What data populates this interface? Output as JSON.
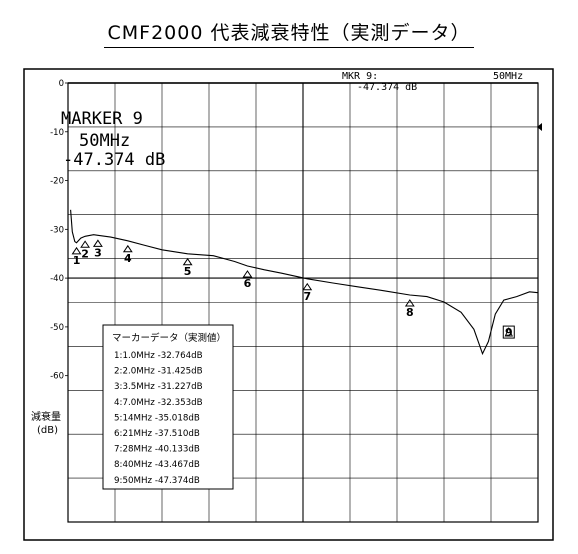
{
  "title": "CMF2000 代表減衰特性（実測データ）",
  "header": {
    "marker_label": "MKR 9:",
    "marker_value": "-47.374 dB",
    "span_label": "50MHz"
  },
  "readout": {
    "line1": "MARKER 9",
    "line2": "50MHz",
    "line3": "-47.374 dB"
  },
  "ylabel": {
    "line1": "減衰量",
    "line2": "(dB)"
  },
  "table": {
    "title": "マーカーデータ（実測値）",
    "rows": [
      "1:1.0MHz -32.764dB",
      "2:2.0MHz -31.425dB",
      "3:3.5MHz -31.227dB",
      "4:7.0MHz -32.353dB",
      "5:14MHz -35.018dB",
      "6:21MHz -37.510dB",
      "7:28MHz -40.133dB",
      "8:40MHz -43.467dB",
      "9:50MHz -47.374dB"
    ]
  },
  "chart_data": {
    "type": "line",
    "xlim": [
      0,
      55
    ],
    "ylim": [
      -90,
      0
    ],
    "yticks": [
      0,
      -10,
      -20,
      -30,
      -40,
      -50,
      -60
    ],
    "grid": true,
    "series": [
      {
        "x": [
          0.3,
          0.5,
          0.8,
          1.0,
          1.5,
          2.0,
          3.0,
          3.5,
          5.0,
          7.0,
          9.0,
          11.0,
          14.0,
          17.0,
          19.5,
          21.0,
          23.0,
          25.0,
          28.0,
          31.0,
          34.0,
          37.0,
          40.0,
          42.0,
          44.0,
          46.0,
          47.5,
          48.5,
          49.2,
          50.0,
          51.0,
          52.5,
          54.0,
          55.0
        ],
        "y": [
          -26,
          -30.5,
          -32.5,
          -32.764,
          -31.8,
          -31.425,
          -31.1,
          -31.227,
          -31.6,
          -32.353,
          -33.3,
          -34.2,
          -35.018,
          -35.4,
          -36.6,
          -37.51,
          -38.3,
          -39.0,
          -40.133,
          -41.0,
          -41.8,
          -42.6,
          -43.467,
          -43.8,
          -44.9,
          -47.0,
          -50.5,
          -55.5,
          -53.0,
          -47.374,
          -44.5,
          -43.8,
          -42.8,
          -43.0
        ]
      }
    ],
    "markers": [
      {
        "label": "1",
        "x": 1.0,
        "y": -32.764
      },
      {
        "label": "2",
        "x": 2.0,
        "y": -31.425
      },
      {
        "label": "3",
        "x": 3.5,
        "y": -31.227
      },
      {
        "label": "4",
        "x": 7.0,
        "y": -32.353
      },
      {
        "label": "5",
        "x": 14.0,
        "y": -35.018
      },
      {
        "label": "6",
        "x": 21.0,
        "y": -37.51
      },
      {
        "label": "7",
        "x": 28.0,
        "y": -40.133
      },
      {
        "label": "8",
        "x": 40.0,
        "y": -43.467
      },
      {
        "label": "9",
        "x": 50.0,
        "y": -47.374
      }
    ]
  }
}
